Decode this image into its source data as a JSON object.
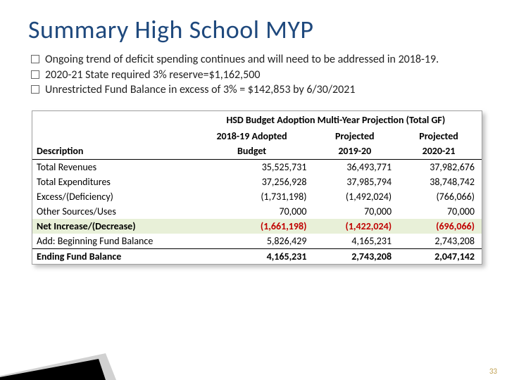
{
  "title": "Summary High School MYP",
  "bullets": [
    "Ongoing trend of deficit spending continues and will need to be addressed in 2018-19.",
    "2020-21 State required 3% reserve=$1,162,500",
    "Unrestricted Fund Balance in excess of 3% = $142,853 by 6/30/2021"
  ],
  "table": {
    "topHeader": "HSD Budget Adoption Multi-Year Projection (Total GF)",
    "colHeaders": {
      "desc": "Description",
      "c1a": "2018-19 Adopted",
      "c1b": "Budget",
      "c2a": "Projected",
      "c2b": "2019-20",
      "c3a": "Projected",
      "c3b": "2020-21"
    },
    "rows": [
      {
        "desc": "Total Revenues",
        "v": [
          "35,525,731",
          "36,493,771",
          "37,982,676"
        ],
        "cls": ""
      },
      {
        "desc": "Total Expenditures",
        "v": [
          "37,256,928",
          "37,985,794",
          "38,748,742"
        ],
        "cls": ""
      },
      {
        "desc": "Excess/(Deficiency)",
        "v": [
          "(1,731,198)",
          "(1,492,024)",
          "(766,066)"
        ],
        "cls": "exc"
      },
      {
        "desc": "Other Sources/Uses",
        "v": [
          "70,000",
          "70,000",
          "70,000"
        ],
        "cls": ""
      },
      {
        "desc": "Net Increase/(Decrease)",
        "v": [
          "(1,661,198)",
          "(1,422,024)",
          "(696,066)"
        ],
        "cls": "net"
      },
      {
        "desc": "Add: Beginning Fund Balance",
        "v": [
          "5,826,429",
          "4,165,231",
          "2,743,208"
        ],
        "cls": ""
      },
      {
        "desc": "Ending Fund Balance",
        "v": [
          "4,165,231",
          "2,743,208",
          "2,047,142"
        ],
        "cls": "end"
      }
    ]
  },
  "pageNumber": "33",
  "colors": {
    "titleColor": "#1f497d",
    "negColor": "#c00000",
    "netBg": "#e8f0d8"
  }
}
